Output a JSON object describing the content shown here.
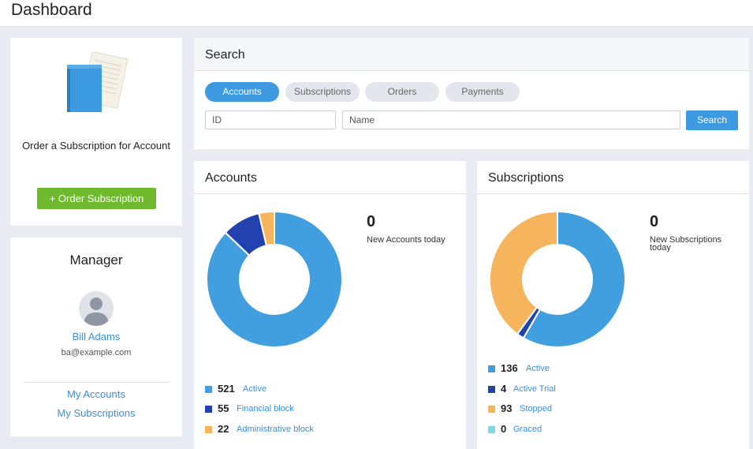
{
  "page": {
    "title": "Dashboard"
  },
  "order": {
    "text": "Order a Subscription for Account",
    "button_label": "+ Order Subscription"
  },
  "manager": {
    "title": "Manager",
    "name": "Bill Adams",
    "email": "ba@example.com",
    "links": [
      "My Accounts",
      "My Subscriptions"
    ]
  },
  "search": {
    "title": "Search",
    "tabs": [
      "Accounts",
      "Subscriptions",
      "Orders",
      "Payments"
    ],
    "active_tab": "Accounts",
    "id_placeholder": "ID",
    "name_placeholder": "Name",
    "button_label": "Search"
  },
  "accounts": {
    "title": "Accounts",
    "today_count": "0",
    "today_label": "New Accounts today",
    "legend": [
      {
        "count": "521",
        "label": "Active",
        "color": "#429fdf"
      },
      {
        "count": "55",
        "label": "Financial block",
        "color": "#2342b0"
      },
      {
        "count": "22",
        "label": "Administrative block",
        "color": "#f6b45d"
      }
    ]
  },
  "subscriptions": {
    "title": "Subscriptions",
    "today_count": "0",
    "today_label": "New Subscriptions today",
    "legend": [
      {
        "count": "136",
        "label": "Active",
        "color": "#429fdf"
      },
      {
        "count": "4",
        "label": "Active Trial",
        "color": "#2342b0"
      },
      {
        "count": "93",
        "label": "Stopped",
        "color": "#f6b45d"
      },
      {
        "count": "0",
        "label": "Graced",
        "color": "#7fd6e8"
      }
    ]
  }
}
